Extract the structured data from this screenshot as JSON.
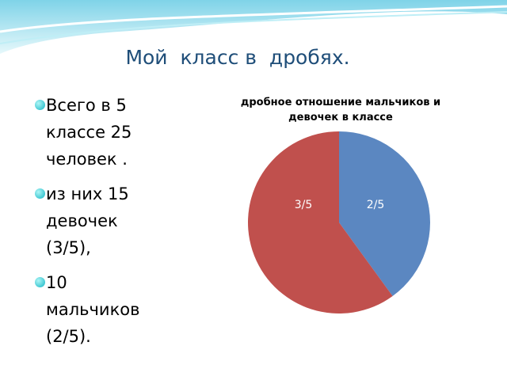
{
  "slide_title": "Мой  класс в  дробях.",
  "bullets": [
    "Всего в 5 классе 25 человек .",
    "из них 15 девочек (3/5),",
    "10 мальчиков (2/5)."
  ],
  "chart_data": {
    "type": "pie",
    "title": "дробное отношение мальчиков и девочек в классе",
    "values": [
      0.4,
      0.6
    ],
    "value_labels": [
      "2/5",
      "3/5"
    ],
    "colors": [
      "#5b87c1",
      "#c0504d"
    ]
  }
}
